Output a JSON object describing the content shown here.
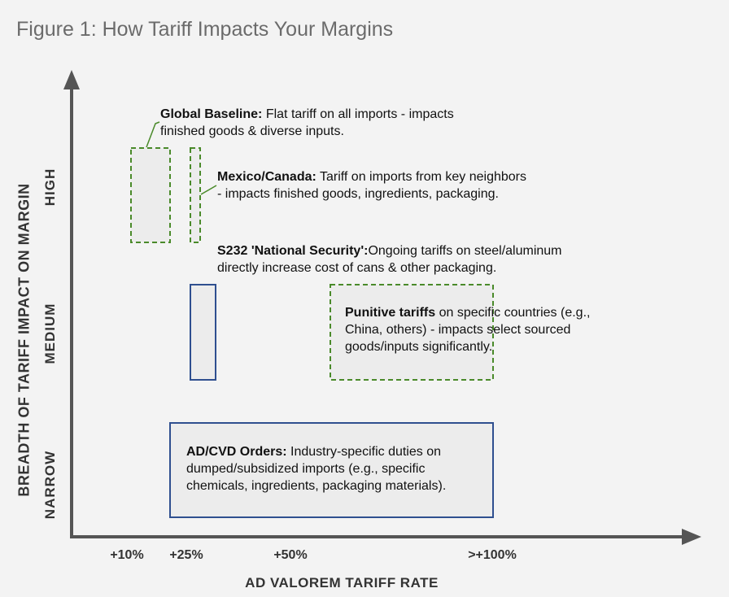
{
  "title": "Figure 1: How Tariff Impacts Your Margins",
  "chart_data": {
    "type": "diagram",
    "xlabel": "AD VALOREM TARIFF RATE",
    "ylabel": "BREADTH OF TARIFF IMPACT ON MARGIN",
    "x_ticks": [
      "+10%",
      "+25%",
      "+50%",
      ">+100%"
    ],
    "y_ticks": [
      "NARROW",
      "MEDIUM",
      "HIGH"
    ],
    "regions": [
      {
        "id": "global-baseline",
        "heading": "Global Baseline:",
        "text_lines": [
          " Flat tariff on all imports - impacts",
          "finished goods & diverse inputs."
        ],
        "line_style": "dashed",
        "color": "#4a8a2a",
        "x_range": [
          "+10%",
          "+10%"
        ],
        "breadth": "HIGH"
      },
      {
        "id": "mexico-canada",
        "heading": "Mexico/Canada:",
        "text_lines": [
          " Tariff on imports from key neighbors",
          "- impacts finished goods, ingredients, packaging."
        ],
        "line_style": "dashed",
        "color": "#4a8a2a",
        "x_range": [
          "+25%",
          "+25%"
        ],
        "breadth": "HIGH"
      },
      {
        "id": "s232",
        "heading": "S232 'National Security':",
        "text_lines": [
          "Ongoing tariffs on steel/aluminum",
          "directly increase cost of cans & other packaging."
        ],
        "line_style": "solid",
        "color": "#2f4f8f",
        "x_range": [
          "+25%",
          "+25%"
        ],
        "breadth": "MEDIUM"
      },
      {
        "id": "punitive",
        "heading": "Punitive tariffs",
        "text_lines": [
          " on specific countries (e.g.,",
          "China, others) - impacts select sourced",
          "goods/inputs significantly."
        ],
        "line_style": "dashed",
        "color": "#4a8a2a",
        "x_range": [
          "+50%",
          ">+100%"
        ],
        "breadth": "MEDIUM"
      },
      {
        "id": "adcvd",
        "heading": "AD/CVD Orders:",
        "text_lines": [
          " Industry-specific duties on",
          "dumped/subsidized imports (e.g., specific",
          "chemicals, ingredients, packaging materials)."
        ],
        "line_style": "solid",
        "color": "#2f4f8f",
        "x_range": [
          "+25%",
          ">+100%"
        ],
        "breadth": "NARROW"
      }
    ]
  },
  "colors": {
    "axis": "#555555",
    "dashed_green": "#4a8a2a",
    "solid_blue": "#2f4f8f",
    "box_fill": "#ececec",
    "background": "#f3f3f3"
  }
}
